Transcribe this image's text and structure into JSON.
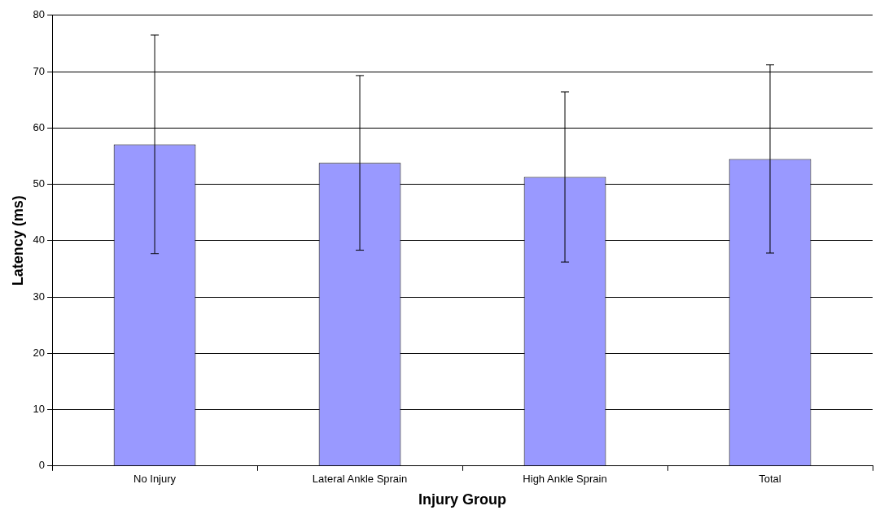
{
  "chart_data": {
    "type": "bar",
    "xlabel": "Injury Group",
    "ylabel": "Latency (ms)",
    "categories": [
      "No Injury",
      "Lateral Ankle Sprain",
      "High Ankle Sprain",
      "Total"
    ],
    "values": [
      57.1,
      53.8,
      51.3,
      54.5
    ],
    "errors": [
      19.4,
      15.5,
      15.1,
      16.7
    ],
    "color": "#9999ff",
    "ylim": [
      0,
      80
    ],
    "yticks": [
      0,
      10,
      20,
      30,
      40,
      50,
      60,
      70,
      80
    ],
    "grid": "y",
    "legend": false
  }
}
